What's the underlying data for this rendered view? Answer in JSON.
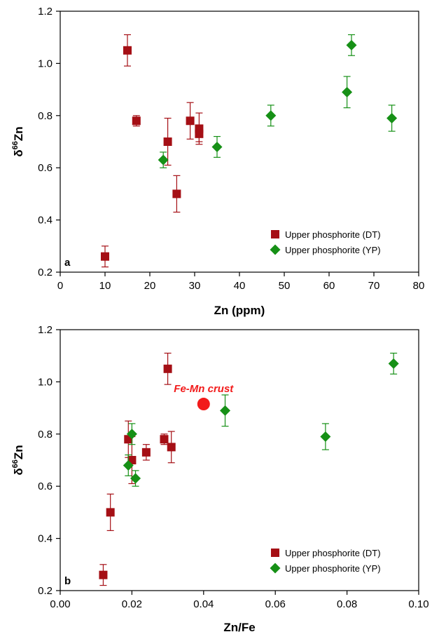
{
  "colors": {
    "dt": "#A50F15",
    "yp": "#169016",
    "crust": "#F21B1B",
    "axis": "#000000"
  },
  "chart_data": [
    {
      "type": "scatter",
      "panel_label": "a",
      "xlabel": "Zn (ppm)",
      "ylabel_base": "δ",
      "ylabel_sup": "66",
      "ylabel_tail": "Zn",
      "xlim": [
        0,
        80
      ],
      "ylim": [
        0.2,
        1.2
      ],
      "xticks": [
        0,
        10,
        20,
        30,
        40,
        50,
        60,
        70,
        80
      ],
      "xtick_labels": [
        "0",
        "10",
        "20",
        "30",
        "40",
        "50",
        "60",
        "70",
        "80"
      ],
      "yticks": [
        0.2,
        0.4,
        0.6,
        0.8,
        1.0,
        1.2
      ],
      "ytick_labels": [
        "0.2",
        "0.4",
        "0.6",
        "0.8",
        "1.0",
        "1.2"
      ],
      "grid": false,
      "legend_position": "bottom-right",
      "series": [
        {
          "name": "Upper phosphorite (DT)",
          "marker": "square",
          "color": "#A50F15",
          "points": [
            {
              "x": 10,
              "y": 0.26,
              "err": 0.04
            },
            {
              "x": 15,
              "y": 1.05,
              "err": 0.06
            },
            {
              "x": 17,
              "y": 0.78,
              "err": 0.02
            },
            {
              "x": 24,
              "y": 0.7,
              "err": 0.09
            },
            {
              "x": 26,
              "y": 0.5,
              "err": 0.07
            },
            {
              "x": 29,
              "y": 0.78,
              "err": 0.07
            },
            {
              "x": 31,
              "y": 0.75,
              "err": 0.06
            },
            {
              "x": 31,
              "y": 0.73,
              "err": 0.03
            }
          ]
        },
        {
          "name": "Upper phosphorite (YP)",
          "marker": "diamond",
          "color": "#169016",
          "points": [
            {
              "x": 23,
              "y": 0.63,
              "err": 0.03
            },
            {
              "x": 35,
              "y": 0.68,
              "err": 0.04
            },
            {
              "x": 47,
              "y": 0.8,
              "err": 0.04
            },
            {
              "x": 64,
              "y": 0.89,
              "err": 0.06
            },
            {
              "x": 65,
              "y": 1.07,
              "err": 0.04
            },
            {
              "x": 74,
              "y": 0.79,
              "err": 0.05
            }
          ]
        }
      ]
    },
    {
      "type": "scatter",
      "panel_label": "b",
      "xlabel": "Zn/Fe",
      "ylabel_base": "δ",
      "ylabel_sup": "66",
      "ylabel_tail": "Zn",
      "xlim": [
        0,
        0.1
      ],
      "ylim": [
        0.2,
        1.2
      ],
      "xticks": [
        0,
        0.02,
        0.04,
        0.06,
        0.08,
        0.1
      ],
      "xtick_labels": [
        "0.00",
        "0.02",
        "0.04",
        "0.06",
        "0.08",
        "0.10"
      ],
      "yticks": [
        0.2,
        0.4,
        0.6,
        0.8,
        1.0,
        1.2
      ],
      "ytick_labels": [
        "0.2",
        "0.4",
        "0.6",
        "0.8",
        "1.0",
        "1.2"
      ],
      "grid": false,
      "legend_position": "bottom-right",
      "series": [
        {
          "name": "Upper phosphorite (DT)",
          "marker": "square",
          "color": "#A50F15",
          "points": [
            {
              "x": 0.012,
              "y": 0.26,
              "err": 0.04
            },
            {
              "x": 0.014,
              "y": 0.5,
              "err": 0.07
            },
            {
              "x": 0.019,
              "y": 0.78,
              "err": 0.07
            },
            {
              "x": 0.02,
              "y": 0.7,
              "err": 0.09
            },
            {
              "x": 0.024,
              "y": 0.73,
              "err": 0.03
            },
            {
              "x": 0.029,
              "y": 0.78,
              "err": 0.02
            },
            {
              "x": 0.03,
              "y": 1.05,
              "err": 0.06
            },
            {
              "x": 0.031,
              "y": 0.75,
              "err": 0.06
            }
          ]
        },
        {
          "name": "Upper phosphorite (YP)",
          "marker": "diamond",
          "color": "#169016",
          "points": [
            {
              "x": 0.019,
              "y": 0.68,
              "err": 0.04
            },
            {
              "x": 0.02,
              "y": 0.8,
              "err": 0.04
            },
            {
              "x": 0.021,
              "y": 0.63,
              "err": 0.03
            },
            {
              "x": 0.046,
              "y": 0.89,
              "err": 0.06
            },
            {
              "x": 0.074,
              "y": 0.79,
              "err": 0.05
            },
            {
              "x": 0.093,
              "y": 1.07,
              "err": 0.04
            }
          ]
        }
      ],
      "annotation": {
        "text": "Fe-Mn crust",
        "point": {
          "x": 0.04,
          "y": 0.915
        },
        "marker": "circle",
        "color": "#F21B1B"
      }
    }
  ]
}
